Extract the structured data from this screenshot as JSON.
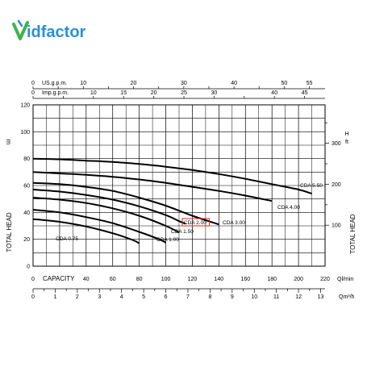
{
  "brand": {
    "mark": "V",
    "text": "idfactor",
    "accent": "#2a8fd8",
    "mark_color": "#3cb54a"
  },
  "chart_data": {
    "type": "line",
    "x_label": "CAPACITY",
    "y_left_label": "TOTAL HEAD",
    "y_left_unit": "m",
    "y_right_label": "TOTAL HEAD",
    "y_right_unit": "ft",
    "x_unit": "Ql/min",
    "x2_unit": "Qm³/h",
    "top_axis_1_label": "US.g.p.m.",
    "top_axis_2_label": "Imp.g.p.m.",
    "xlim": [
      0,
      220
    ],
    "ylim": [
      0,
      120
    ],
    "grid": true,
    "x_ticks": [
      0,
      20,
      40,
      60,
      80,
      100,
      120,
      140,
      160,
      180,
      200,
      220
    ],
    "x_tick_labels": [
      "0",
      "",
      "40",
      "60",
      "80",
      "100",
      "120",
      "140",
      "160",
      "180",
      "200",
      "220"
    ],
    "y_ticks": [
      0,
      10,
      20,
      30,
      40,
      50,
      60,
      70,
      80,
      90,
      100,
      110,
      120
    ],
    "y_tick_labels": [
      "0",
      "",
      "20",
      "",
      "40",
      "",
      "60",
      "",
      "80",
      "",
      "100",
      "",
      "120"
    ],
    "y2_ticks": [
      100,
      200,
      300
    ],
    "y2_tick_labels": [
      "100",
      "200",
      "300"
    ],
    "x2_ticks": [
      0,
      1,
      2,
      3,
      4,
      5,
      6,
      7,
      8,
      9,
      10,
      11,
      12,
      13
    ],
    "x2_tick_labels": [
      "0",
      "1",
      "2",
      "3",
      "4",
      "5",
      "6",
      "7",
      "8",
      "9",
      "10",
      "11",
      "12",
      "13"
    ],
    "us_gpm_ticks": [
      0,
      5,
      10,
      15,
      20,
      25,
      30,
      35,
      40,
      45,
      50,
      55
    ],
    "us_gpm_tick_labels": [
      "0",
      "",
      "10",
      "",
      "20",
      "",
      "30",
      "",
      "40",
      "",
      "50",
      "55"
    ],
    "imp_gpm_ticks": [
      0,
      5,
      10,
      15,
      20,
      25,
      30,
      35,
      40,
      45
    ],
    "imp_gpm_tick_labels": [
      "0",
      "",
      "10",
      "15",
      "20",
      "25",
      "30",
      "",
      "40",
      "45"
    ],
    "series": [
      {
        "name": "CDA 0.75",
        "points": [
          [
            0,
            35
          ],
          [
            20,
            33
          ],
          [
            40,
            29.5
          ],
          [
            60,
            24.5
          ],
          [
            75,
            19.5
          ],
          [
            80,
            17
          ]
        ]
      },
      {
        "name": "CDA 1.00",
        "points": [
          [
            0,
            42
          ],
          [
            20,
            40
          ],
          [
            40,
            36.5
          ],
          [
            60,
            32
          ],
          [
            80,
            25.5
          ],
          [
            95,
            20
          ],
          [
            100,
            17.5
          ]
        ]
      },
      {
        "name": "CDA 1.50",
        "points": [
          [
            0,
            51
          ],
          [
            20,
            49.5
          ],
          [
            40,
            47
          ],
          [
            60,
            43
          ],
          [
            80,
            37.5
          ],
          [
            100,
            30
          ],
          [
            110,
            25
          ]
        ]
      },
      {
        "name": "CDA 2.00",
        "points": [
          [
            0,
            57
          ],
          [
            20,
            55.5
          ],
          [
            40,
            53
          ],
          [
            60,
            49.5
          ],
          [
            80,
            44.5
          ],
          [
            100,
            38
          ],
          [
            110,
            33.5
          ],
          [
            115,
            31.5
          ]
        ]
      },
      {
        "name": "CDA 3.00",
        "points": [
          [
            0,
            62
          ],
          [
            20,
            61
          ],
          [
            40,
            59
          ],
          [
            60,
            56
          ],
          [
            80,
            51
          ],
          [
            100,
            45
          ],
          [
            120,
            37.5
          ],
          [
            140,
            31
          ]
        ]
      },
      {
        "name": "CDA 4.00",
        "points": [
          [
            0,
            70
          ],
          [
            20,
            69
          ],
          [
            40,
            68
          ],
          [
            60,
            66.5
          ],
          [
            80,
            64.5
          ],
          [
            100,
            62
          ],
          [
            120,
            59
          ],
          [
            140,
            56
          ],
          [
            160,
            52.5
          ],
          [
            180,
            48.5
          ]
        ]
      },
      {
        "name": "CDA 5.50",
        "points": [
          [
            0,
            80
          ],
          [
            20,
            79.5
          ],
          [
            40,
            78.5
          ],
          [
            60,
            77.5
          ],
          [
            80,
            76
          ],
          [
            100,
            74
          ],
          [
            120,
            71.5
          ],
          [
            140,
            68.5
          ],
          [
            160,
            65
          ],
          [
            180,
            61
          ],
          [
            200,
            57
          ],
          [
            210,
            54
          ]
        ]
      }
    ],
    "highlight_series": "CDA 2.00",
    "highlight_color": "#e02020"
  }
}
